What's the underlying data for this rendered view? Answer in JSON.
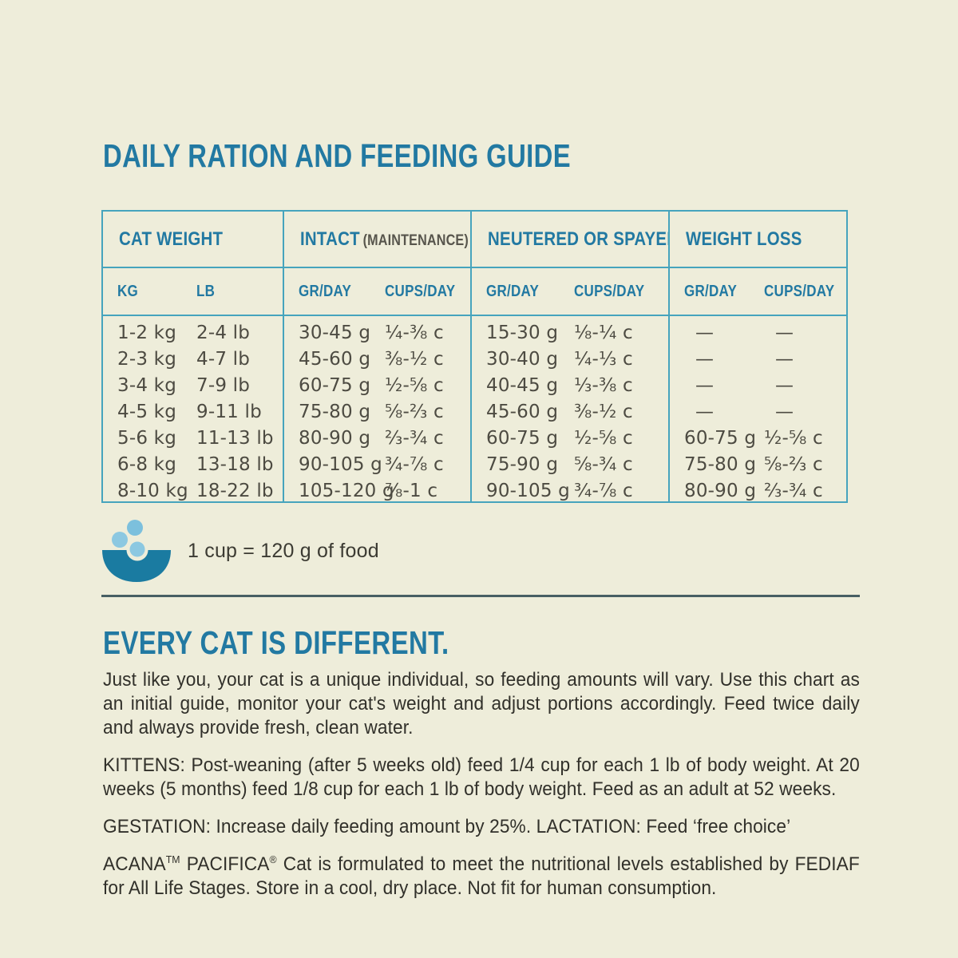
{
  "page": {
    "title": "DAILY RATION AND FEEDING GUIDE",
    "background_color": "#eeedda",
    "accent_color": "#2279a2",
    "table_border_color": "#46a4bd",
    "divider_color": "#475f63",
    "bowl_color": "#1a7ba1",
    "kibble_color": "#85c4df"
  },
  "table": {
    "groups": [
      {
        "label": "CAT WEIGHT",
        "sublabel": "",
        "columns": [
          "KG",
          "LB"
        ]
      },
      {
        "label": "INTACT",
        "sublabel": "(MAINTENANCE)",
        "columns": [
          "GR/DAY",
          "CUPS/DAY"
        ]
      },
      {
        "label": "NEUTERED OR SPAYED",
        "sublabel": "",
        "columns": [
          "GR/DAY",
          "CUPS/DAY"
        ]
      },
      {
        "label": "WEIGHT LOSS",
        "sublabel": "",
        "columns": [
          "GR/DAY",
          "CUPS/DAY"
        ]
      }
    ],
    "rows": [
      [
        "1-2 kg",
        "2-4 lb",
        "30-45 g",
        "¼-⅜ c",
        "15-30 g",
        "⅛-¼ c",
        "—",
        "—"
      ],
      [
        "2-3 kg",
        "4-7 lb",
        "45-60 g",
        "⅜-½ c",
        "30-40 g",
        "¼-⅓ c",
        "—",
        "—"
      ],
      [
        "3-4 kg",
        "7-9 lb",
        "60-75 g",
        "½-⅝ c",
        "40-45 g",
        "⅓-⅜ c",
        "—",
        "—"
      ],
      [
        "4-5 kg",
        "9-11 lb",
        "75-80 g",
        "⅝-⅔ c",
        "45-60 g",
        "⅜-½ c",
        "—",
        "—"
      ],
      [
        "5-6 kg",
        "11-13 lb",
        "80-90 g",
        "⅔-¾ c",
        "60-75 g",
        "½-⅝ c",
        "60-75 g",
        "½-⅝ c"
      ],
      [
        "6-8 kg",
        "13-18 lb",
        "90-105 g",
        "¾-⅞ c",
        "75-90 g",
        "⅝-¾ c",
        "75-80 g",
        "⅝-⅔ c"
      ],
      [
        "8-10 kg",
        "18-22 lb",
        "105-120 g",
        "⅞-1 c",
        "90-105 g",
        "¾-⅞ c",
        "80-90 g",
        "⅔-¾ c"
      ]
    ]
  },
  "cup_note": {
    "icon": "food-bowl-icon",
    "text": "1 cup = 120 g of food"
  },
  "sections": {
    "heading": "EVERY CAT IS DIFFERENT.",
    "intro": "Just like you, your cat is a unique individual, so feeding amounts will vary. Use this chart as an initial guide, monitor your cat's weight and adjust portions accordingly. Feed twice daily and always provide fresh, clean water.",
    "kittens": "KITTENS: Post-weaning (after 5 weeks old) feed 1/4 cup for each 1 lb of body weight. At 20 weeks (5 months) feed 1/8 cup for each 1 lb of body weight. Feed as an adult at 52 weeks.",
    "gestation": "GESTATION: Increase daily feeding amount by 25%. LACTATION: Feed ‘free choice’",
    "formulation": {
      "brand1": "ACANA",
      "sup1": "TM",
      "brand2": " PACIFICA",
      "sup2": "®",
      "rest": " Cat is formulated to meet the nutritional levels established by FEDIAF for All Life Stages. Store in a cool, dry place. Not fit for human consumption."
    }
  }
}
